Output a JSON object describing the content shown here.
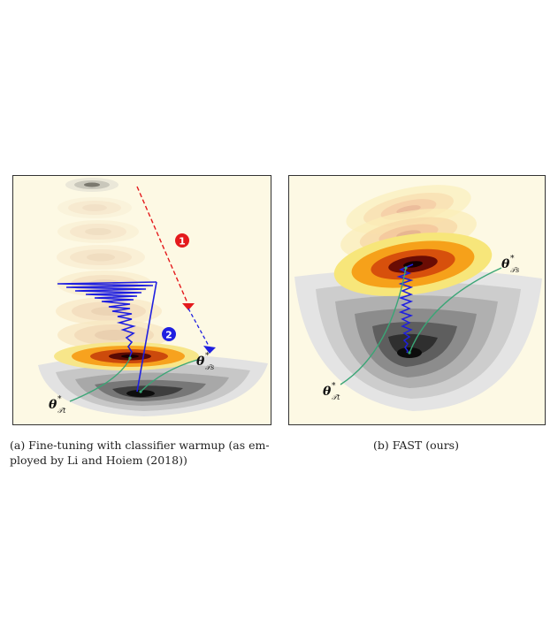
{
  "panels": {
    "a": {
      "caption": "(a) Fine-tuning with classifier warmup (as employed by Li and Hoiem (2018))",
      "caption_line1": "(a) Fine-tuning with classifier warmup (as em-",
      "caption_line2": "ployed by Li and Hoiem (2018))",
      "labels": {
        "theta_source": "θ",
        "theta_source_sup": "*",
        "theta_source_sub": "𝒯s",
        "theta_target": "θ",
        "theta_target_sup": "*",
        "theta_target_sub": "𝒯t"
      },
      "markers": [
        {
          "text": "1",
          "color": "#e41a1c"
        },
        {
          "text": "2",
          "color": "#1f1fe0"
        }
      ]
    },
    "b": {
      "caption": "(b) FAST (ours)",
      "labels": {
        "theta_source": "θ",
        "theta_source_sup": "*",
        "theta_source_sub": "𝒯s",
        "theta_target": "θ",
        "theta_target_sup": "*",
        "theta_target_sub": "𝒯t"
      }
    }
  },
  "colors": {
    "background": "#fdf9e4",
    "path_blue": "#1f1fe0",
    "path_red": "#e41a1c",
    "annotation_green": "#3aa676"
  }
}
